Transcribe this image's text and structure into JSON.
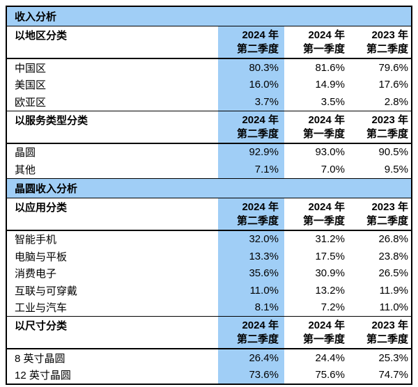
{
  "table": {
    "highlight_color": "#a0cef6",
    "border_color": "#000000",
    "text_color": "#000000",
    "columns": [
      {
        "line1": "2024 年",
        "line2": "第二季度",
        "highlighted": true
      },
      {
        "line1": "2024 年",
        "line2": "第一季度",
        "highlighted": false
      },
      {
        "line1": "2023 年",
        "line2": "第二季度",
        "highlighted": false
      }
    ],
    "sections": [
      {
        "title": "收入分析",
        "groups": [
          {
            "header": "以地区分类",
            "rows": [
              {
                "label": "中国区",
                "values": [
                  "80.3%",
                  "81.6%",
                  "79.6%"
                ]
              },
              {
                "label": "美国区",
                "values": [
                  "16.0%",
                  "14.9%",
                  "17.6%"
                ]
              },
              {
                "label": "欧亚区",
                "values": [
                  "3.7%",
                  "3.5%",
                  "2.8%"
                ]
              }
            ]
          },
          {
            "header": "以服务类型分类",
            "rows": [
              {
                "label": "晶圆",
                "values": [
                  "92.9%",
                  "93.0%",
                  "90.5%"
                ]
              },
              {
                "label": "其他",
                "values": [
                  "7.1%",
                  "7.0%",
                  "9.5%"
                ]
              }
            ]
          }
        ]
      },
      {
        "title": "晶圆收入分析",
        "groups": [
          {
            "header": "以应用分类",
            "rows": [
              {
                "label": "智能手机",
                "values": [
                  "32.0%",
                  "31.2%",
                  "26.8%"
                ]
              },
              {
                "label": "电脑与平板",
                "values": [
                  "13.3%",
                  "17.5%",
                  "23.8%"
                ]
              },
              {
                "label": "消费电子",
                "values": [
                  "35.6%",
                  "30.9%",
                  "26.5%"
                ]
              },
              {
                "label": "互联与可穿戴",
                "values": [
                  "11.0%",
                  "13.2%",
                  "11.9%"
                ]
              },
              {
                "label": "工业与汽车",
                "values": [
                  "8.1%",
                  "7.2%",
                  "11.0%"
                ]
              }
            ]
          },
          {
            "header": "以尺寸分类",
            "rows": [
              {
                "label": "8 英寸晶圆",
                "values": [
                  "26.4%",
                  "24.4%",
                  "25.3%"
                ]
              },
              {
                "label": "12 英寸晶圆",
                "values": [
                  "73.6%",
                  "75.6%",
                  "74.7%"
                ]
              }
            ]
          }
        ]
      }
    ]
  }
}
